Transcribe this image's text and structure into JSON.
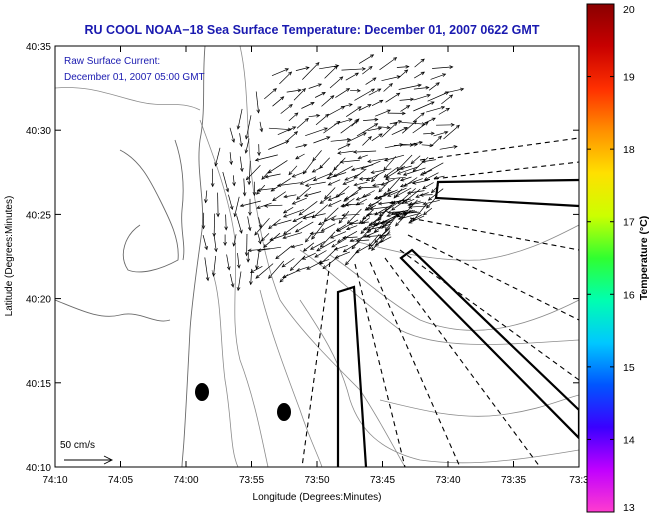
{
  "title": "RU COOL  NOAA−18  Sea Surface Temperature:  December 01, 2007 0622 GMT",
  "legend": {
    "line1": "Raw Surface Current:",
    "line2": "December 01, 2007 05:00 GMT",
    "scale_label": "50 cm/s"
  },
  "x_axis": {
    "label": "Longitude (Degrees:Minutes)",
    "ticks": [
      "74:10",
      "74:05",
      "74:00",
      "73:55",
      "73:50",
      "73:45",
      "73:40",
      "73:35",
      "73:3"
    ]
  },
  "y_axis": {
    "label": "Latitude (Degrees:Minutes)",
    "ticks": [
      "40:10",
      "40:15",
      "40:20",
      "40:25",
      "40:30",
      "40:35"
    ]
  },
  "colorbar": {
    "label": "Temperature (°C)",
    "ticks": [
      "13",
      "14",
      "15",
      "16",
      "17",
      "18",
      "19",
      "20"
    ],
    "colors": [
      "#ff3ccf",
      "#c000ff",
      "#3a00ff",
      "#0055ff",
      "#00c8ff",
      "#00ffb0",
      "#30ff30",
      "#ccff00",
      "#ffe000",
      "#ff9000",
      "#ff3000",
      "#c80000",
      "#8a0000"
    ]
  },
  "map_colors": {
    "land": "#ffffff",
    "water": "#ffffff",
    "contour": "#8c8c8c",
    "coast": "#6a6a6a",
    "vector": "#000000"
  }
}
